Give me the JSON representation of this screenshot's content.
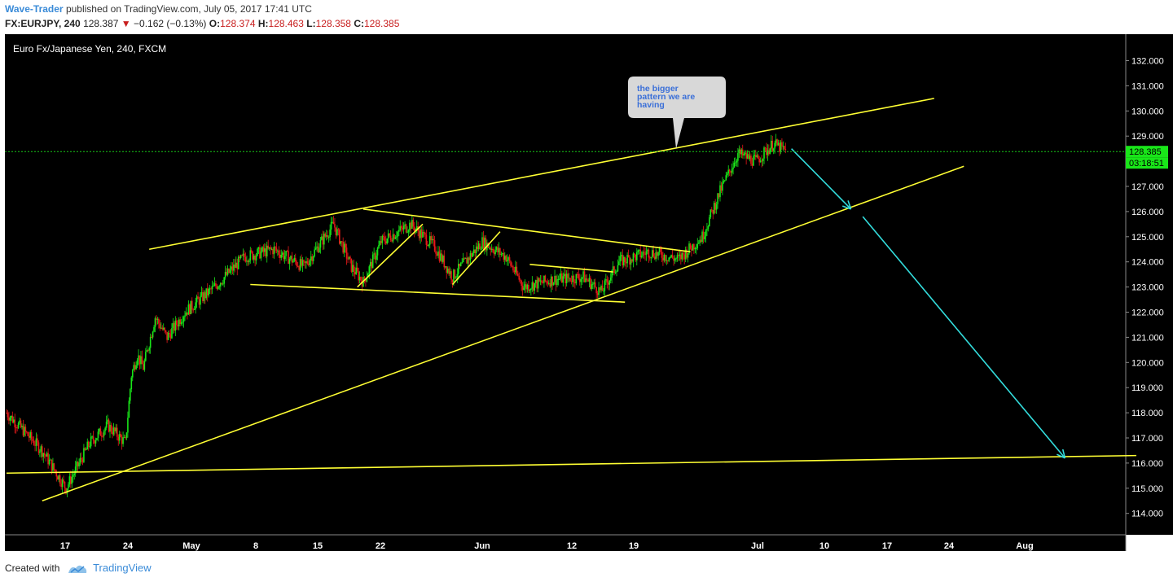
{
  "header": {
    "author": "Wave-Trader",
    "published_text": "published on TradingView.com, July 05, 2017 17:41 UTC",
    "symbol": "FX:EURJPY, 240",
    "last": "128.387",
    "down_arrow": "▼",
    "change": "−0.162 (−0.13%)",
    "o_label": "O:",
    "o_value": "128.374",
    "h_label": "H:",
    "h_value": "128.463",
    "l_label": "L:",
    "l_value": "128.358",
    "c_label": "C:",
    "c_value": "128.385"
  },
  "footer": {
    "created_with": "Created with",
    "brand": "TradingView"
  },
  "colors": {
    "background": "#000000",
    "up_candle": "#19e619",
    "down_candle": "#e61919",
    "trendline": "#ffff33",
    "arrow": "#33dddd",
    "price_line": "#19c819",
    "price_label_bg": "#19e619",
    "axis_text": "#ffffff"
  },
  "chart_data": {
    "type": "candlestick",
    "title": "Euro Fx/Japanese Yen, 240, FXCM",
    "y_ticks": [
      "132.000",
      "131.000",
      "130.000",
      "129.000",
      "128.000",
      "127.000",
      "126.000",
      "125.000",
      "124.000",
      "123.000",
      "122.000",
      "121.000",
      "120.000",
      "119.000",
      "118.000",
      "117.000",
      "116.000",
      "115.000",
      "114.000"
    ],
    "ylim": [
      113.5,
      132.2
    ],
    "x_ticks": [
      "17",
      "24",
      "May",
      "8",
      "15",
      "22",
      "Jun",
      "12",
      "19",
      "Jul",
      "10",
      "17",
      "24",
      "Aug"
    ],
    "current_price": "128.385",
    "countdown": "03:18:51",
    "annotation": "the bigger pattern we are having",
    "price_path": [
      [
        0,
        118.0
      ],
      [
        6,
        116.5
      ],
      [
        10,
        115.0
      ],
      [
        14,
        116.8
      ],
      [
        17,
        117.5
      ],
      [
        20,
        116.8
      ],
      [
        21,
        119.5
      ],
      [
        22,
        120.3
      ],
      [
        23,
        119.8
      ],
      [
        25,
        121.8
      ],
      [
        27,
        121.0
      ],
      [
        30,
        122.0
      ],
      [
        35,
        123.0
      ],
      [
        40,
        124.2
      ],
      [
        45,
        124.5
      ],
      [
        50,
        123.8
      ],
      [
        55,
        125.5
      ],
      [
        58,
        123.8
      ],
      [
        60,
        123.2
      ],
      [
        63,
        124.8
      ],
      [
        68,
        125.5
      ],
      [
        72,
        124.6
      ],
      [
        75,
        123.4
      ],
      [
        80,
        124.8
      ],
      [
        84,
        124.2
      ],
      [
        87,
        123.0
      ],
      [
        92,
        123.3
      ],
      [
        97,
        123.4
      ],
      [
        100,
        122.8
      ],
      [
        103,
        124.0
      ],
      [
        108,
        124.4
      ],
      [
        113,
        124.1
      ],
      [
        117,
        125.0
      ],
      [
        120,
        126.8
      ],
      [
        123,
        128.3
      ],
      [
        126,
        128.0
      ],
      [
        129,
        128.7
      ],
      [
        131,
        128.4
      ]
    ],
    "trendlines": [
      {
        "name": "upper-channel",
        "points": [
          [
            24,
            124.5
          ],
          [
            156,
            130.5
          ]
        ]
      },
      {
        "name": "lower-channel",
        "points": [
          [
            6,
            114.5
          ],
          [
            161,
            127.8
          ]
        ]
      },
      {
        "name": "base-line",
        "points": [
          [
            0,
            115.6
          ],
          [
            190,
            116.3
          ]
        ]
      },
      {
        "name": "triangle-top",
        "points": [
          [
            60,
            126.1
          ],
          [
            115,
            124.4
          ]
        ]
      },
      {
        "name": "triangle-bottom",
        "points": [
          [
            41,
            123.1
          ],
          [
            104,
            122.4
          ]
        ]
      },
      {
        "name": "small-flag-top",
        "points": [
          [
            88,
            123.9
          ],
          [
            102,
            123.6
          ]
        ]
      },
      {
        "name": "leg-a",
        "points": [
          [
            59,
            123.0
          ],
          [
            70,
            125.5
          ]
        ]
      },
      {
        "name": "leg-b",
        "points": [
          [
            75,
            123.1
          ],
          [
            83,
            125.2
          ]
        ]
      }
    ],
    "arrows": [
      {
        "name": "arrow-1",
        "points": [
          [
            132,
            128.5
          ],
          [
            142,
            126.1
          ]
        ]
      },
      {
        "name": "arrow-2",
        "points": [
          [
            144,
            125.8
          ],
          [
            178,
            116.2
          ]
        ]
      }
    ]
  }
}
